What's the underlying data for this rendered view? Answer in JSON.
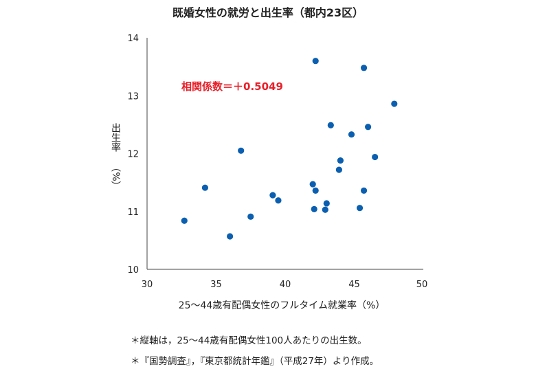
{
  "chart_data": {
    "type": "scatter",
    "title": "既婚女性の就労と出生率（都内23区）",
    "xlabel": "25～44歳有配偶女性のフルタイム就業率（%）",
    "ylabel_main": "出生率",
    "ylabel_unit": "（%）",
    "xlim": [
      30,
      50
    ],
    "ylim": [
      10,
      14
    ],
    "xticks": [
      "30",
      "35",
      "40",
      "45",
      "50"
    ],
    "yticks": [
      "10",
      "11",
      "12",
      "13",
      "14"
    ],
    "grid": false,
    "annotation": "相関係数＝＋0.5049",
    "annotation_color": "#e8202a",
    "marker_color": "#0b5fb0",
    "points": [
      {
        "x": 32.7,
        "y": 10.84
      },
      {
        "x": 34.2,
        "y": 11.41
      },
      {
        "x": 36.0,
        "y": 10.57
      },
      {
        "x": 36.8,
        "y": 12.05
      },
      {
        "x": 37.5,
        "y": 10.91
      },
      {
        "x": 39.1,
        "y": 11.28
      },
      {
        "x": 39.5,
        "y": 11.19
      },
      {
        "x": 42.0,
        "y": 11.47
      },
      {
        "x": 42.2,
        "y": 11.36
      },
      {
        "x": 42.1,
        "y": 11.04
      },
      {
        "x": 42.2,
        "y": 13.6
      },
      {
        "x": 42.9,
        "y": 11.03
      },
      {
        "x": 43.0,
        "y": 11.14
      },
      {
        "x": 43.3,
        "y": 12.49
      },
      {
        "x": 43.9,
        "y": 11.72
      },
      {
        "x": 44.0,
        "y": 11.88
      },
      {
        "x": 44.8,
        "y": 12.33
      },
      {
        "x": 45.4,
        "y": 11.06
      },
      {
        "x": 45.7,
        "y": 11.36
      },
      {
        "x": 45.7,
        "y": 13.48
      },
      {
        "x": 46.0,
        "y": 12.46
      },
      {
        "x": 46.5,
        "y": 11.94
      },
      {
        "x": 47.9,
        "y": 12.86
      }
    ]
  },
  "notes": [
    "＊縦軸は，25～44歳有配偶女性100人あたりの出生数。",
    "＊『国勢調査』，『東京都統計年鑑』（平成27年）より作成。"
  ]
}
